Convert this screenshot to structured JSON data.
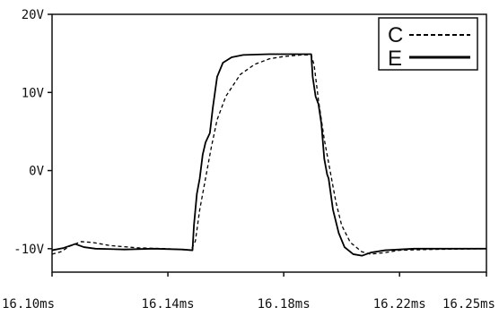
{
  "chart_data": {
    "type": "line",
    "title": "",
    "xlabel": "",
    "ylabel": "",
    "xlim": [
      16.1,
      16.25
    ],
    "ylim": [
      -13,
      20
    ],
    "x_unit": "ms",
    "y_unit": "V",
    "y_ticks": [
      {
        "value": 20,
        "label": "20V"
      },
      {
        "value": 10,
        "label": "10V"
      },
      {
        "value": 0,
        "label": "0V"
      },
      {
        "value": -10,
        "label": "-10V"
      }
    ],
    "x_ticks": [
      {
        "value": 16.1,
        "label": "16.10ms"
      },
      {
        "value": 16.14,
        "label": "16.14ms"
      },
      {
        "value": 16.18,
        "label": "16.18ms"
      },
      {
        "value": 16.22,
        "label": "16.22ms"
      },
      {
        "value": 16.25,
        "label": "16.25ms"
      }
    ],
    "grid": false,
    "legend_position": "top-right",
    "series": [
      {
        "name": "C",
        "style": "dashed",
        "color": "#000000",
        "points": [
          [
            16.1,
            -10.7
          ],
          [
            16.103,
            -10.4
          ],
          [
            16.106,
            -9.7
          ],
          [
            16.11,
            -9.1
          ],
          [
            16.114,
            -9.2
          ],
          [
            16.12,
            -9.6
          ],
          [
            16.13,
            -9.9
          ],
          [
            16.14,
            -10.0
          ],
          [
            16.148,
            -10.2
          ],
          [
            16.1495,
            -9.0
          ],
          [
            16.151,
            -5.0
          ],
          [
            16.153,
            -1.0
          ],
          [
            16.155,
            3.0
          ],
          [
            16.157,
            6.5
          ],
          [
            16.16,
            9.5
          ],
          [
            16.165,
            12.3
          ],
          [
            16.17,
            13.6
          ],
          [
            16.175,
            14.3
          ],
          [
            16.18,
            14.6
          ],
          [
            16.186,
            14.8
          ],
          [
            16.1895,
            14.8
          ],
          [
            16.1905,
            13.5
          ],
          [
            16.192,
            9.0
          ],
          [
            16.194,
            4.0
          ],
          [
            16.196,
            0.0
          ],
          [
            16.198,
            -4.0
          ],
          [
            16.2,
            -7.0
          ],
          [
            16.203,
            -9.2
          ],
          [
            16.207,
            -10.4
          ],
          [
            16.21,
            -10.7
          ],
          [
            16.215,
            -10.5
          ],
          [
            16.22,
            -10.2
          ],
          [
            16.23,
            -10.1
          ],
          [
            16.25,
            -10.0
          ]
        ]
      },
      {
        "name": "E",
        "style": "solid",
        "color": "#000000",
        "points": [
          [
            16.1,
            -10.2
          ],
          [
            16.104,
            -9.9
          ],
          [
            16.108,
            -9.4
          ],
          [
            16.111,
            -9.8
          ],
          [
            16.115,
            -10.0
          ],
          [
            16.125,
            -10.1
          ],
          [
            16.135,
            -10.0
          ],
          [
            16.145,
            -10.1
          ],
          [
            16.1485,
            -10.2
          ],
          [
            16.149,
            -7.0
          ],
          [
            16.15,
            -3.0
          ],
          [
            16.151,
            -1.0
          ],
          [
            16.152,
            2.0
          ],
          [
            16.153,
            3.6
          ],
          [
            16.1545,
            4.8
          ],
          [
            16.1555,
            8.0
          ],
          [
            16.157,
            12.0
          ],
          [
            16.159,
            13.8
          ],
          [
            16.162,
            14.5
          ],
          [
            16.166,
            14.8
          ],
          [
            16.175,
            14.9
          ],
          [
            16.189,
            14.9
          ],
          [
            16.1895,
            14.9
          ],
          [
            16.19,
            12.0
          ],
          [
            16.191,
            9.5
          ],
          [
            16.192,
            8.5
          ],
          [
            16.193,
            6.0
          ],
          [
            16.194,
            1.5
          ],
          [
            16.195,
            -0.5
          ],
          [
            16.1955,
            -1.0
          ],
          [
            16.197,
            -5.0
          ],
          [
            16.199,
            -8.0
          ],
          [
            16.201,
            -9.8
          ],
          [
            16.204,
            -10.7
          ],
          [
            16.207,
            -10.9
          ],
          [
            16.21,
            -10.5
          ],
          [
            16.215,
            -10.2
          ],
          [
            16.225,
            -10.0
          ],
          [
            16.25,
            -10.0
          ]
        ]
      }
    ]
  }
}
